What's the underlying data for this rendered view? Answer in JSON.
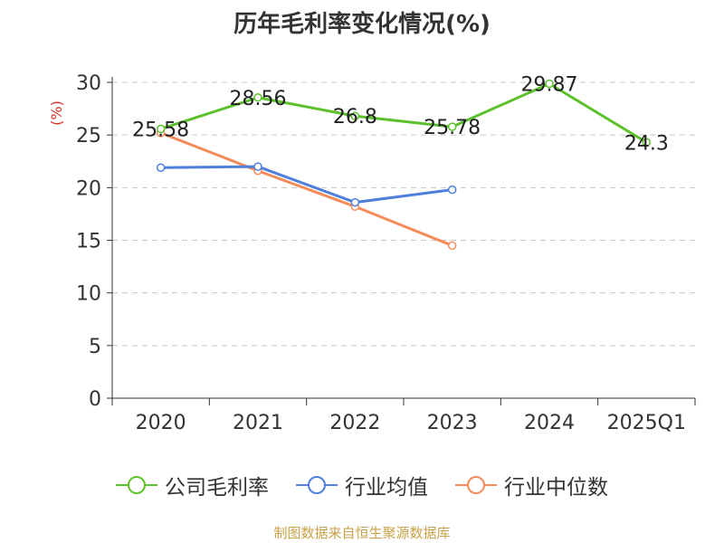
{
  "title": "历年毛利率变化情况(%)",
  "source": "制图数据来自恒生聚源数据库",
  "chart_data": {
    "type": "line",
    "title": "历年毛利率变化情况(%)",
    "ylabel": "(%)",
    "xlabel": "",
    "categories": [
      "2020",
      "2021",
      "2022",
      "2023",
      "2024",
      "2025Q1"
    ],
    "ylim": [
      0,
      30
    ],
    "yticks": [
      "0",
      "5",
      "10",
      "15",
      "20",
      "25",
      "30"
    ],
    "grid": true,
    "legend_position": "bottom",
    "series": [
      {
        "name": "公司毛利率",
        "color": "#5cc12c",
        "values": [
          25.58,
          28.56,
          26.8,
          25.78,
          29.87,
          24.3
        ],
        "labels": [
          "25.58",
          "28.56",
          "26.8",
          "25.78",
          "29.87",
          "24.3"
        ]
      },
      {
        "name": "行业均值",
        "color": "#4e7fdc",
        "values": [
          21.9,
          22.0,
          18.6,
          19.8,
          null,
          null
        ]
      },
      {
        "name": "行业中位数",
        "color": "#f48c5a",
        "values": [
          25.2,
          21.6,
          18.2,
          14.5,
          null,
          null
        ]
      }
    ]
  }
}
